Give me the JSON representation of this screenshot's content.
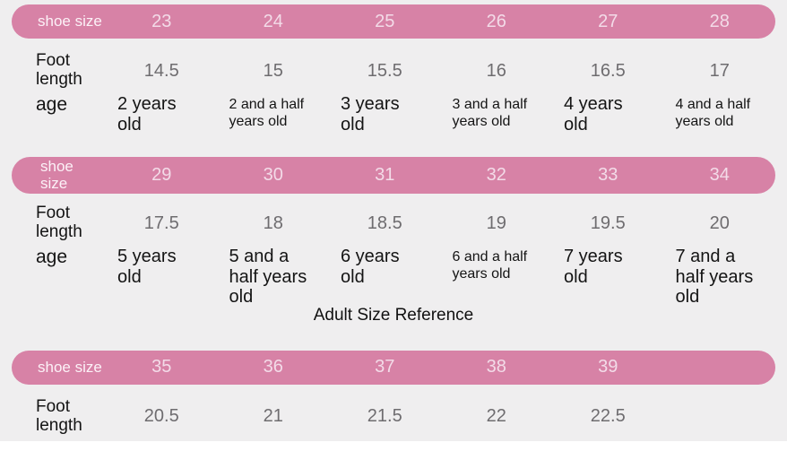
{
  "page": {
    "background_color": "#efeeef",
    "accent_color": "#d782a6",
    "adult_title": "Adult Size Reference"
  },
  "labels": {
    "shoe_size": "shoe size",
    "foot_length": "Foot length",
    "age": "age"
  },
  "sections": [
    {
      "label_wraps": false,
      "sizes": [
        "23",
        "24",
        "25",
        "26",
        "27",
        "28"
      ],
      "foot_lengths": [
        "14.5",
        "15",
        "15.5",
        "16",
        "16.5",
        "17"
      ],
      "ages": [
        {
          "text": "2 years old",
          "small": false
        },
        {
          "text": "2 and a half years old",
          "small": true
        },
        {
          "text": "3 years old",
          "small": false
        },
        {
          "text": "3 and a half years old",
          "small": true
        },
        {
          "text": "4 years old",
          "small": false
        },
        {
          "text": "4 and a half years old",
          "small": true
        }
      ]
    },
    {
      "label_wraps": true,
      "sizes": [
        "29",
        "30",
        "31",
        "32",
        "33",
        "34"
      ],
      "foot_lengths": [
        "17.5",
        "18",
        "18.5",
        "19",
        "19.5",
        "20"
      ],
      "ages": [
        {
          "text": "5 years old",
          "small": false
        },
        {
          "text": "5 and a half years old",
          "small": false
        },
        {
          "text": "6 years old",
          "small": false
        },
        {
          "text": "6 and a half years old",
          "small": true
        },
        {
          "text": "7 years old",
          "small": false
        },
        {
          "text": "7 and a half years old",
          "small": false
        }
      ]
    },
    {
      "label_wraps": false,
      "title_before": true,
      "sizes": [
        "35",
        "36",
        "37",
        "38",
        "39",
        ""
      ],
      "foot_lengths": [
        "20.5",
        "21",
        "21.5",
        "22",
        "22.5",
        ""
      ],
      "ages": null
    }
  ]
}
